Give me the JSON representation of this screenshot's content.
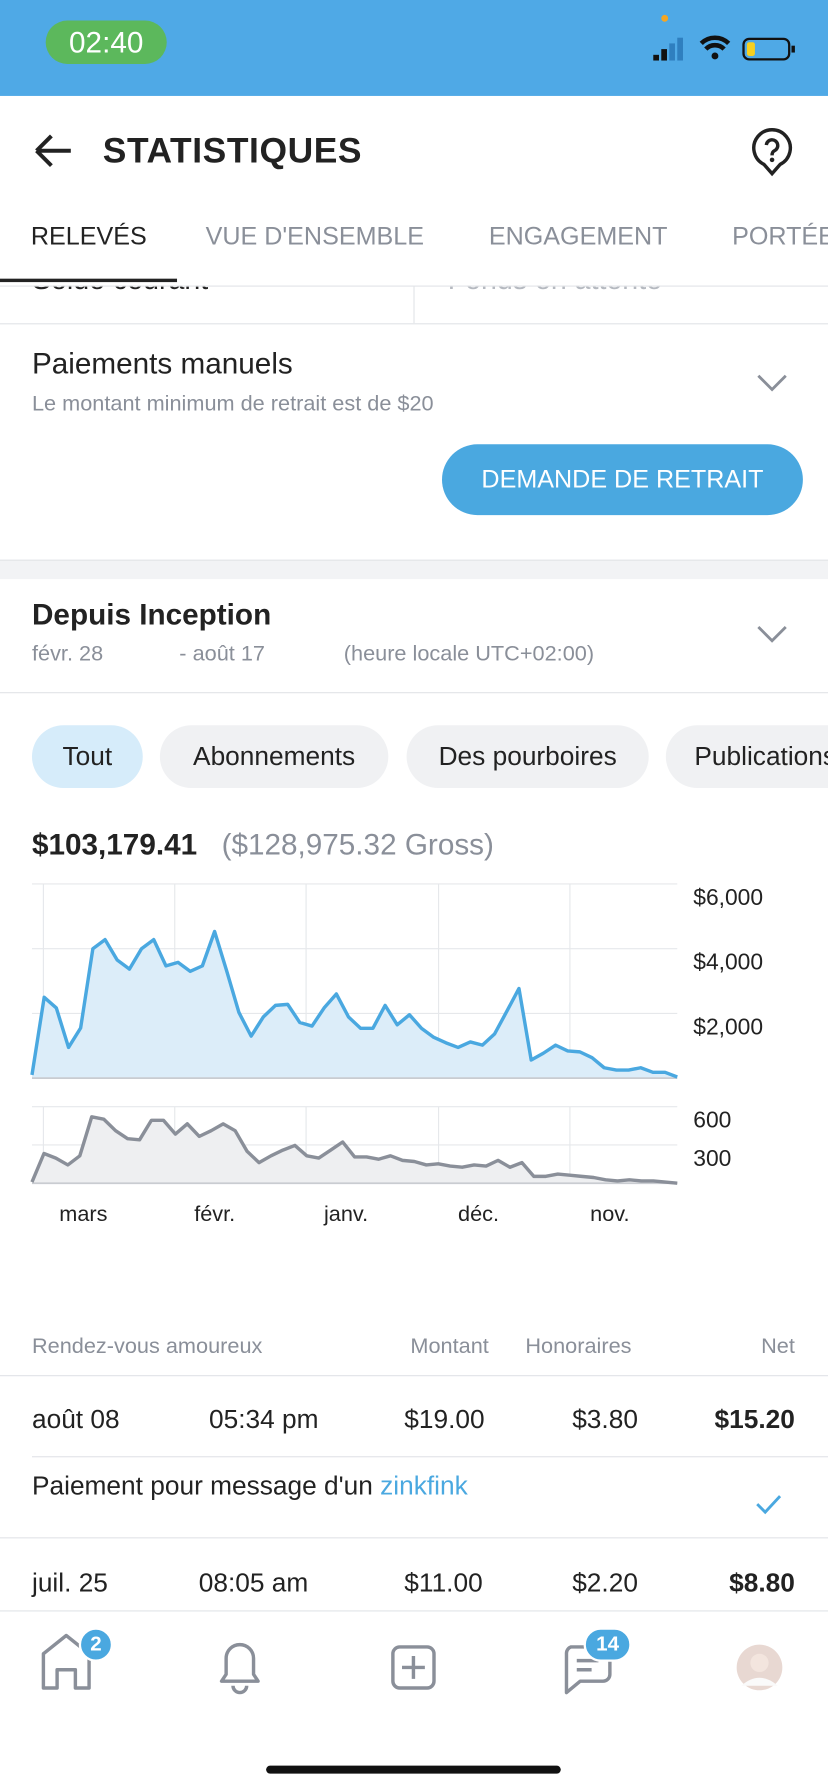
{
  "status_bar": {
    "time": "02:40"
  },
  "header": {
    "title": "STATISTIQUES"
  },
  "tabs": [
    "RELEVÉS",
    "VUE D'ENSEMBLE",
    "ENGAGEMENT",
    "PORTÉE"
  ],
  "balance": {
    "current": "Solde courant",
    "pending": "Fonds en attente"
  },
  "manual_payments": {
    "title": "Paiements manuels",
    "note": "Le montant minimum de retrait est de $20",
    "button": "DEMANDE DE RETRAIT"
  },
  "period": {
    "title": "Depuis Inception",
    "start": "févr. 28",
    "end": "- août 17",
    "timezone": "(heure locale UTC+02:00)"
  },
  "filters": [
    "Tout",
    "Abonnements",
    "Des pourboires",
    "Publications"
  ],
  "totals": {
    "net": "$103,179.41",
    "gross": "($128,975.32 Gross)"
  },
  "charts": [
    {
      "type": "area",
      "color": "#4aa8e0",
      "fill": "#dcedf9",
      "ylim": [
        0,
        6000
      ],
      "yticks": [
        {
          "value": 2000,
          "label": "$2,000"
        },
        {
          "value": 4000,
          "label": "$4,000"
        },
        {
          "value": 6000,
          "label": "$6,000"
        }
      ],
      "grid": true,
      "values": [
        100,
        2500,
        2170,
        950,
        1550,
        4000,
        4280,
        3650,
        3370,
        4000,
        4280,
        3470,
        3580,
        3300,
        3470,
        4530,
        3300,
        2030,
        1300,
        1890,
        2250,
        2280,
        1720,
        1610,
        2170,
        2600,
        1890,
        1540,
        1540,
        2250,
        1650,
        1960,
        1540,
        1260,
        1090,
        950,
        1120,
        1020,
        1370,
        2070,
        2770,
        560,
        770,
        1020,
        840,
        810,
        630,
        320,
        250,
        250,
        320,
        180,
        180,
        35
      ]
    },
    {
      "type": "area",
      "color": "#8a8f99",
      "fill": "#eeeff1",
      "ylim": [
        0,
        600
      ],
      "yticks": [
        300,
        600
      ],
      "grid": true,
      "xtick_labels": [
        "mars",
        "févr.",
        "janv.",
        "déc.",
        "nov."
      ],
      "values": [
        9,
        233,
        197,
        143,
        215,
        520,
        502,
        412,
        349,
        340,
        493,
        493,
        385,
        466,
        367,
        412,
        466,
        412,
        251,
        161,
        215,
        260,
        296,
        215,
        197,
        260,
        323,
        206,
        206,
        188,
        215,
        179,
        170,
        143,
        152,
        134,
        125,
        143,
        134,
        179,
        125,
        161,
        54,
        54,
        72,
        63,
        54,
        45,
        27,
        18,
        27,
        18,
        18,
        9,
        0
      ]
    }
  ],
  "table": {
    "columns": [
      "Rendez-vous amoureux",
      "Montant",
      "Honoraires",
      "Net"
    ],
    "rows": [
      {
        "date": "août 08",
        "time": "05:34 pm",
        "amount": "$19.00",
        "fee": "$3.80",
        "net": "$15.20"
      },
      {
        "date": "juil. 25",
        "time": "08:05 am",
        "amount": "$11.00",
        "fee": "$2.20",
        "net": "$8.80"
      }
    ],
    "message": {
      "text": "Paiement pour message d'un",
      "user": "zinkfink"
    }
  },
  "nav": {
    "home_badge": 2,
    "messages_badge": 14
  }
}
